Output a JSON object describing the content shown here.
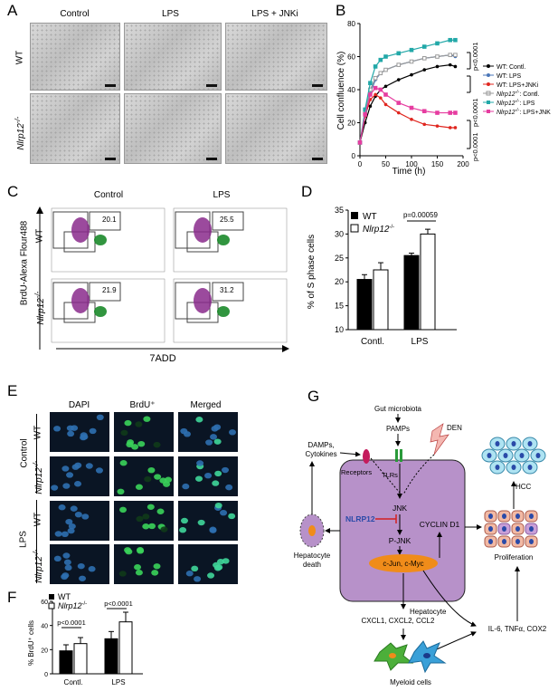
{
  "panels": {
    "A": "A",
    "B": "B",
    "C": "C",
    "D": "D",
    "E": "E",
    "F": "F",
    "G": "G"
  },
  "panelA": {
    "columns": [
      "Control",
      "LPS",
      "LPS + JNKi"
    ],
    "rows": [
      {
        "label": "WT",
        "italic": false
      },
      {
        "label": "Nlrp12",
        "sup": "-/-",
        "italic": true
      }
    ]
  },
  "chart_b": {
    "ylabel": "Cell confluence (%)",
    "xlabel": "Time (h)",
    "yticks": [
      "0",
      "20",
      "40",
      "60",
      "80"
    ],
    "xticks": [
      "0",
      "50",
      "100",
      "150",
      "200"
    ],
    "pvals": [
      "p<0.0001",
      "p<0.0001",
      "p<0.0001"
    ],
    "legend": [
      {
        "label": "WT: Contl.",
        "color": "#000000",
        "marker": "circle"
      },
      {
        "label": "WT: LPS",
        "color": "#4a76b8",
        "marker": "circle"
      },
      {
        "label": "WT: LPS+JNKi",
        "color": "#e0261f",
        "marker": "circle"
      },
      {
        "label_it": "Nlrp12",
        "sup": "-/-",
        "rest": ": Contl.",
        "color": "#9a9a9a",
        "marker": "square"
      },
      {
        "label_it": "Nlrp12",
        "sup": "-/-",
        "rest": ": LPS",
        "color": "#22a8a8",
        "marker": "square"
      },
      {
        "label_it": "Nlrp12",
        "sup": "-/-",
        "rest": ": LPS+JNK",
        "color": "#e63da0",
        "marker": "square"
      }
    ]
  },
  "panelC": {
    "columns": [
      "Control",
      "LPS"
    ],
    "rows": [
      {
        "label": "WT"
      },
      {
        "label": "Nlrp12",
        "sup": "-/-"
      }
    ],
    "values": [
      "20.1",
      "25.5",
      "21.9",
      "31.2"
    ],
    "ylabel": "BrdU-Alexa Flour488",
    "xlabel": "7ADD"
  },
  "chart_d": {
    "ylabel": "% of S phase cells",
    "yticks": [
      "10",
      "15",
      "20",
      "25",
      "30",
      "35"
    ],
    "categories": [
      "Contl.",
      "LPS"
    ],
    "legend": [
      {
        "label": "WT"
      },
      {
        "label_it": "Nlrp12",
        "sup": "-/-"
      }
    ],
    "pval": "p=0.00059"
  },
  "panelE": {
    "columns": [
      "DAPI",
      "BrdU⁺",
      "Merged"
    ],
    "groups": [
      "Control",
      "LPS"
    ],
    "rows": [
      {
        "label": "WT"
      },
      {
        "label": "Nlrp12",
        "sup": "-/-"
      }
    ]
  },
  "chart_f": {
    "ylabel": "% BrdU⁺ cells",
    "yticks": [
      "0",
      "20",
      "40",
      "60"
    ],
    "categories": [
      "Contl.",
      "LPS"
    ],
    "legend": [
      {
        "label": "WT"
      },
      {
        "label_it": "Nlrp12",
        "sup": "-/-"
      }
    ],
    "pvals": [
      "p<0.0001",
      "p<0.0001"
    ]
  },
  "chart_data": [
    {
      "type": "line",
      "title": "",
      "xlabel": "Time (h)",
      "ylabel": "Cell confluence (%)",
      "xlim": [
        0,
        200
      ],
      "ylim": [
        0,
        80
      ],
      "series": [
        {
          "name": "WT: Contl.",
          "x": [
            0,
            10,
            20,
            30,
            40,
            50,
            75,
            100,
            125,
            150,
            175,
            185
          ],
          "values": [
            8,
            20,
            30,
            36,
            40,
            42,
            46,
            49,
            52,
            54,
            55,
            54
          ]
        },
        {
          "name": "WT: LPS",
          "x": [
            0,
            10,
            20,
            30,
            40,
            50,
            75,
            100,
            125,
            150,
            175,
            185
          ],
          "values": [
            8,
            24,
            38,
            46,
            50,
            52,
            55,
            57,
            59,
            60,
            61,
            60
          ]
        },
        {
          "name": "WT: LPS+JNKi",
          "x": [
            0,
            10,
            20,
            30,
            40,
            50,
            75,
            100,
            125,
            150,
            175,
            185
          ],
          "values": [
            8,
            24,
            34,
            37,
            35,
            31,
            26,
            22,
            19,
            18,
            17,
            17
          ]
        },
        {
          "name": "Nlrp12-/-: Contl.",
          "x": [
            0,
            10,
            20,
            30,
            40,
            50,
            75,
            100,
            125,
            150,
            175,
            185
          ],
          "values": [
            8,
            26,
            40,
            47,
            50,
            52,
            55,
            57,
            59,
            60,
            61,
            61
          ]
        },
        {
          "name": "Nlrp12-/-: LPS",
          "x": [
            0,
            10,
            20,
            30,
            40,
            50,
            75,
            100,
            125,
            150,
            175,
            185
          ],
          "values": [
            8,
            28,
            44,
            54,
            58,
            60,
            62,
            64,
            66,
            68,
            70,
            70
          ]
        },
        {
          "name": "Nlrp12-/-: LPS+JNK",
          "x": [
            0,
            10,
            20,
            30,
            40,
            50,
            75,
            100,
            125,
            150,
            175,
            185
          ],
          "values": [
            8,
            25,
            37,
            41,
            40,
            37,
            32,
            29,
            27,
            26,
            26,
            26
          ]
        }
      ]
    },
    {
      "type": "bar",
      "ylabel": "% of S phase cells",
      "categories": [
        "Contl.",
        "LPS"
      ],
      "ylim": [
        10,
        35
      ],
      "series": [
        {
          "name": "WT",
          "values": [
            20.5,
            25.5
          ],
          "errors": [
            1,
            0.5
          ]
        },
        {
          "name": "Nlrp12-/-",
          "values": [
            22.5,
            30
          ],
          "errors": [
            1.5,
            1
          ]
        }
      ]
    },
    {
      "type": "bar",
      "ylabel": "% BrdU⁺ cells",
      "categories": [
        "Contl.",
        "LPS"
      ],
      "ylim": [
        0,
        60
      ],
      "series": [
        {
          "name": "WT",
          "values": [
            19,
            29
          ],
          "errors": [
            5,
            6
          ]
        },
        {
          "name": "Nlrp12-/-",
          "values": [
            25,
            43
          ],
          "errors": [
            5,
            8
          ]
        }
      ]
    }
  ],
  "diagram": {
    "gut": "Gut microbiota",
    "pamps": "PAMPs",
    "den": "DEN",
    "damps": "DAMPs,",
    "cytokines": "Cytokines",
    "receptors": "Receptors",
    "tlrs": "TLRs",
    "jnk": "JNK",
    "nlrp12": "NLRP12",
    "pjnk": "P-JNK",
    "cyclin": "CYCLIN D1",
    "cjun": "c-Jun, c-Myc",
    "hepatocyte": "Hepatocyte",
    "hcc": "HCC",
    "proliferation": "Proliferation",
    "death1": "Hepatocyte",
    "death2": "death",
    "cxcl": "CXCL1, CXCL2, CCL2",
    "il6": "IL-6, TNFα, COX2",
    "myeloid": "Myeloid cells"
  }
}
